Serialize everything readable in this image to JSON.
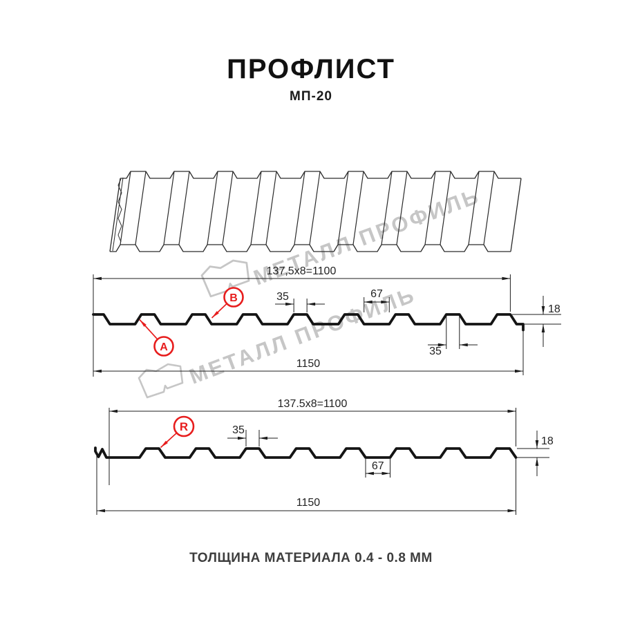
{
  "page": {
    "title": "ПРОФЛИСТ",
    "subtitle": "МП-20",
    "footer_note": "ТОЛЩИНА МАТЕРИАЛА 0.4 - 0.8 ММ"
  },
  "watermark": {
    "text": "МЕТАЛЛ ПРОФИЛЬ"
  },
  "colors": {
    "accent_red": "#e71d1d",
    "line_color": "#1c1c1c",
    "watermark_gray": "#c6c6c6"
  },
  "sections": [
    {
      "name": "profile-side-a-b",
      "top_dimension": "137,5x8=1100",
      "crest_top_width": "35",
      "valley_width": "67",
      "crest_bottom_width": "35",
      "profile_height": "18",
      "overall_width": "1150",
      "callouts": [
        "A",
        "B"
      ]
    },
    {
      "name": "profile-side-r",
      "top_dimension": "137.5x8=1100",
      "crest_top_width": "35",
      "valley_width": "67",
      "profile_height": "18",
      "overall_width": "1150",
      "callouts": [
        "R"
      ]
    }
  ]
}
